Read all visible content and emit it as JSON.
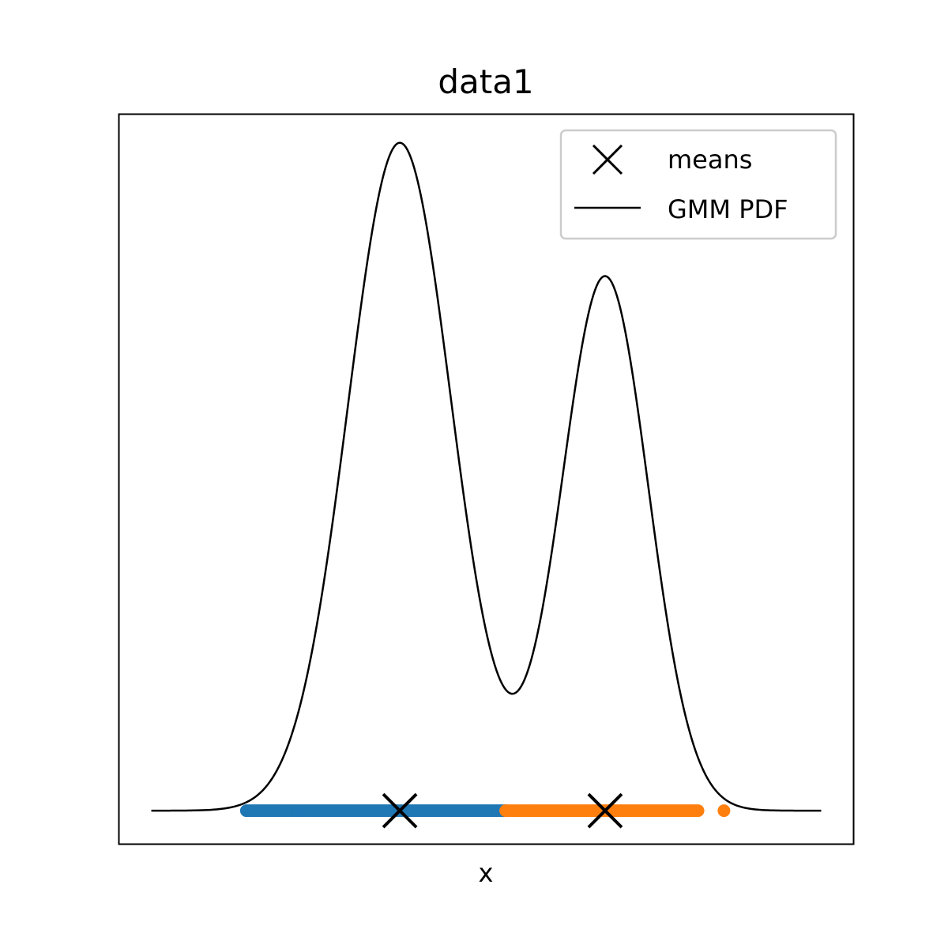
{
  "chart_data": {
    "type": "line",
    "title": "data1",
    "xlabel": "x",
    "ylabel": "",
    "xlim": [
      -0.35,
      1.35
    ],
    "ylim": [
      -0.1,
      2.08
    ],
    "grid": false,
    "legend": {
      "placement": "top-right",
      "entries": [
        {
          "label": "means",
          "marker": "x-icon"
        },
        {
          "label": "GMM PDF",
          "marker": "line"
        }
      ]
    },
    "gmm": {
      "weights": [
        0.6,
        0.4
      ],
      "means": [
        0.3,
        0.775
      ],
      "stds": [
        0.12,
        0.1
      ]
    },
    "pdf_line": {
      "x_range": [
        -0.275,
        1.275
      ],
      "color": "#000000"
    },
    "means": {
      "x": [
        0.3,
        0.775
      ],
      "y": [
        0.0,
        0.0
      ],
      "color": "#000000"
    },
    "points": {
      "y": 0.0,
      "series": [
        {
          "color": "#1f77b4",
          "x_range": [
            -0.055,
            0.545
          ]
        },
        {
          "color": "#ff7f0e",
          "x_range": [
            0.545,
            0.99
          ],
          "extra": [
            1.05
          ]
        }
      ]
    }
  }
}
